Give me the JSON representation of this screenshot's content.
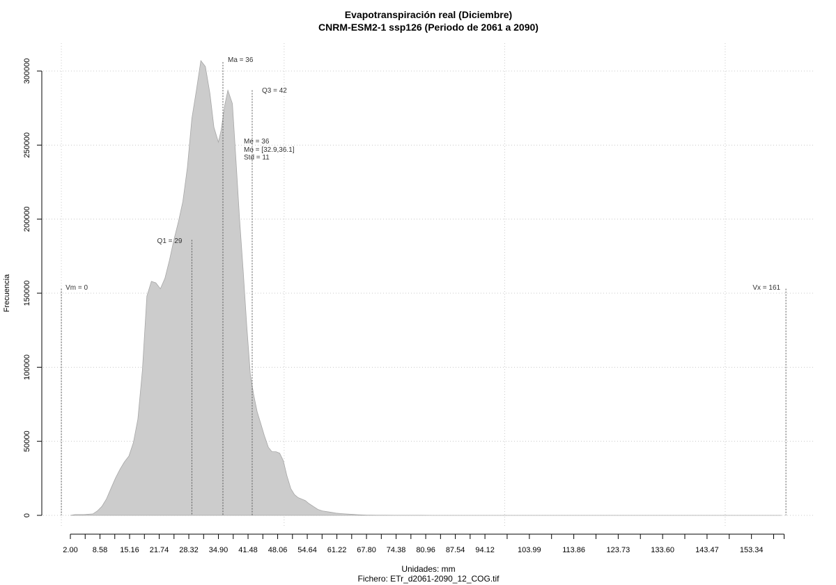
{
  "chart_data": {
    "type": "area",
    "title": "Evapotranspiración real (Diciembre)",
    "subtitle": "CNRM-ESM2-1 ssp126 (Periodo de 2061 a 2090)",
    "xlabel": "Unidades: mm",
    "ylabel": "Frecuencia",
    "file_label": "Fichero: ETr_d2061-2090_12_COG.tif",
    "xlim": [
      2,
      164
    ],
    "ylim": [
      0,
      300000
    ],
    "y_ticks": [
      0,
      50000,
      100000,
      150000,
      200000,
      250000,
      300000
    ],
    "x_tick_labels": [
      "2.00",
      "8.58",
      "15.16",
      "21.74",
      "28.32",
      "34.90",
      "41.48",
      "48.06",
      "54.64",
      "61.22",
      "67.80",
      "74.38",
      "80.96",
      "87.54",
      "94.12",
      "103.99",
      "113.86",
      "123.73",
      "133.60",
      "143.47",
      "153.34"
    ],
    "x_tick_values": [
      2.0,
      8.58,
      15.16,
      21.74,
      28.32,
      34.9,
      41.48,
      48.06,
      54.64,
      61.22,
      67.8,
      74.38,
      80.96,
      87.54,
      94.12,
      103.99,
      113.86,
      123.73,
      133.6,
      143.47,
      153.34
    ],
    "x_minor_ticks": [
      5.29,
      11.87,
      18.45,
      25.03,
      31.61,
      38.19,
      44.77,
      51.35,
      57.93,
      64.51,
      71.09,
      77.67,
      84.25,
      90.83,
      99.05,
      108.92,
      118.79,
      128.66,
      138.53,
      148.4,
      158.27
    ],
    "grid_x": [
      0,
      49.5,
      98.5,
      147.5
    ],
    "grid": true,
    "series": [
      {
        "color": "#cccccc",
        "x": [
          2,
          3,
          5,
          7,
          8,
          9,
          10,
          11,
          12,
          13,
          14,
          15,
          16,
          17,
          18,
          19,
          20,
          21,
          22,
          23,
          24,
          25,
          26,
          27,
          28,
          29,
          30,
          31,
          32,
          33,
          33.9,
          34.9,
          35.5,
          36.3,
          37,
          38,
          38.8,
          39.6,
          40.4,
          41.2,
          42,
          42.7,
          43.5,
          44.3,
          45.1,
          46,
          46.8,
          47.7,
          48.5,
          49.3,
          50.1,
          51,
          51.8,
          52.6,
          53.4,
          54.2,
          55,
          56,
          57,
          58,
          59,
          60,
          61,
          62,
          63,
          64,
          65,
          66,
          67,
          68,
          69,
          70,
          72,
          74,
          76,
          78,
          80,
          82,
          84,
          88,
          92,
          96,
          100,
          110,
          120,
          130,
          140,
          150,
          160
        ],
        "y": [
          0,
          500,
          500,
          1000,
          3000,
          6000,
          11000,
          18000,
          25000,
          31000,
          36000,
          40000,
          49000,
          65000,
          98000,
          148000,
          158000,
          157000,
          153000,
          160000,
          172000,
          186000,
          198000,
          212000,
          235000,
          268000,
          287000,
          307000,
          303000,
          285000,
          262000,
          252000,
          260000,
          277000,
          287000,
          278000,
          240000,
          200000,
          165000,
          128000,
          95000,
          82000,
          70000,
          62000,
          54000,
          46000,
          43000,
          43000,
          42000,
          37000,
          27000,
          18000,
          14000,
          12000,
          11000,
          10000,
          8000,
          6000,
          4000,
          3000,
          2500,
          2000,
          1500,
          1200,
          1000,
          800,
          600,
          400,
          300,
          200,
          150,
          100,
          80,
          60,
          50,
          40,
          30,
          20,
          15,
          10,
          5,
          0,
          0,
          0,
          0,
          0,
          0,
          0,
          0
        ]
      }
    ],
    "annotations": [
      {
        "key": "ma",
        "text": "Ma = 36",
        "x": 35.9,
        "y_top": 306000
      },
      {
        "key": "q3",
        "text": "Q3 = 42",
        "x": 42.4,
        "y_top": 287000
      },
      {
        "key": "q1",
        "text": "Q1 = 29",
        "x": 29,
        "y_top": 186000
      },
      {
        "key": "me",
        "text": "Me = 36"
      },
      {
        "key": "mo",
        "text": "Mo = [32.9,36.1]"
      },
      {
        "key": "std",
        "text": "Std = 11"
      },
      {
        "key": "vm",
        "text": "Vm = 0",
        "x": 0,
        "y_top": 153000
      },
      {
        "key": "vx",
        "text": "Vx = 161",
        "x": 161,
        "y_top": 153000
      }
    ]
  }
}
